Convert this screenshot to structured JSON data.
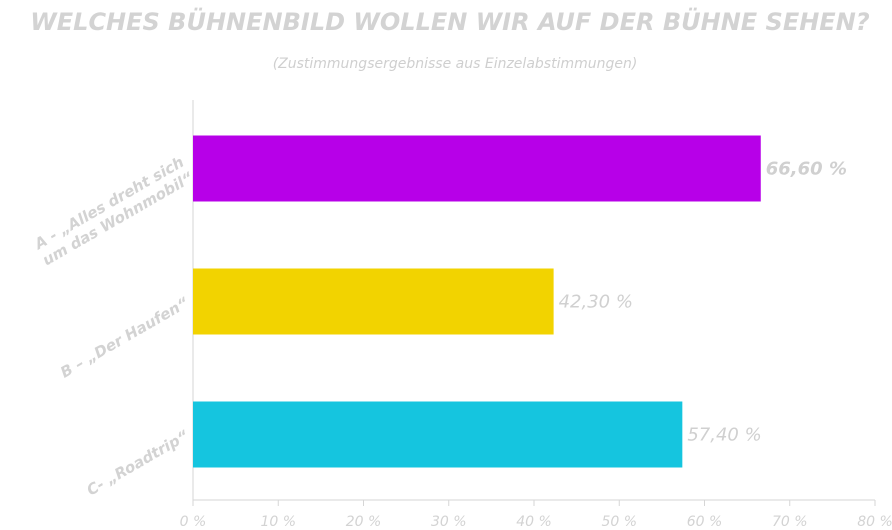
{
  "chart_data": {
    "type": "bar",
    "orientation": "horizontal",
    "title": "WELCHES BÜHNENBILD WOLLEN WIR AUF DER BÜHNE SEHEN?",
    "subtitle": "(Zustimmungsergebnisse aus Einzelabstimmungen)",
    "categories": [
      [
        "A - „Alles dreht sich",
        "um das Wohnmobil“"
      ],
      [
        "B – „Der Haufen“"
      ],
      [
        "C- „Roadtrip“"
      ]
    ],
    "values": [
      66.6,
      42.3,
      57.4
    ],
    "value_labels": [
      "66,60 %",
      "42,30 %",
      "57,40 %"
    ],
    "colors": [
      "#b700e8",
      "#f2d300",
      "#15c5df"
    ],
    "xlim": [
      0,
      80
    ],
    "ticks": [
      0,
      10,
      20,
      30,
      40,
      50,
      60,
      70,
      80
    ],
    "tick_labels": [
      "0 %",
      "10 %",
      "20 %",
      "30 %",
      "40 %",
      "50 %",
      "60 %",
      "70 %",
      "80 %"
    ],
    "grid": false,
    "legend": "none"
  }
}
